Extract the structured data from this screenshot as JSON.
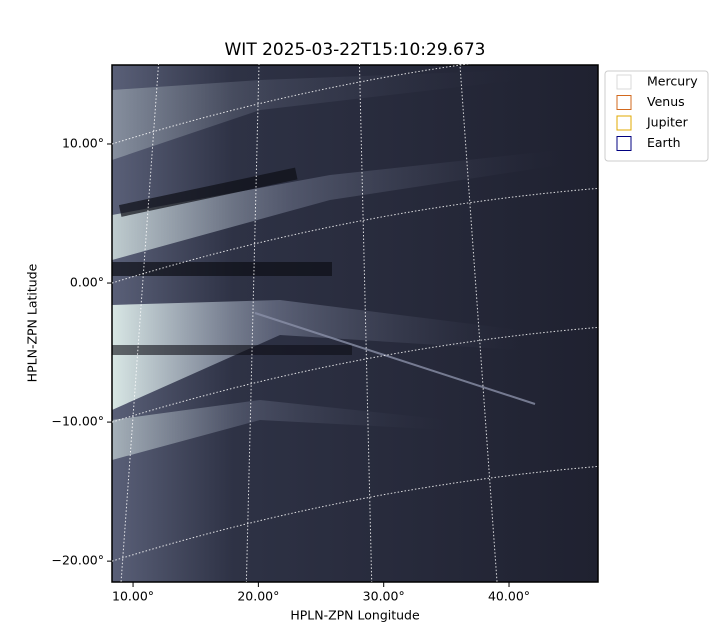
{
  "chart_data": {
    "type": "image",
    "title": "WIT 2025-03-22T15:10:29.673",
    "x_label": "HPLN-ZPN Longitude",
    "y_label": "HPLN-ZPN Latitude",
    "xlim": [
      8.32,
      47.1
    ],
    "ylim": [
      -21.5,
      15.68
    ],
    "xticks": [
      {
        "value": 10,
        "label": "10.00°"
      },
      {
        "value": 20,
        "label": "20.00°"
      },
      {
        "value": 30,
        "label": "30.00°"
      },
      {
        "value": 40,
        "label": "40.00°"
      }
    ],
    "yticks": [
      {
        "value": -20,
        "label": "−20.00°"
      },
      {
        "value": -10,
        "label": "−10.00°"
      },
      {
        "value": 0,
        "label": "0.00°"
      },
      {
        "value": 10,
        "label": "10.00°"
      }
    ],
    "grid": true,
    "legend_position": "upper right",
    "series": [
      {
        "name": "Mercury",
        "color": "#d9d9d9"
      },
      {
        "name": "Venus",
        "color": "#d2691e"
      },
      {
        "name": "Jupiter",
        "color": "#e0a800"
      },
      {
        "name": "Earth",
        "color": "#000080"
      }
    ]
  }
}
